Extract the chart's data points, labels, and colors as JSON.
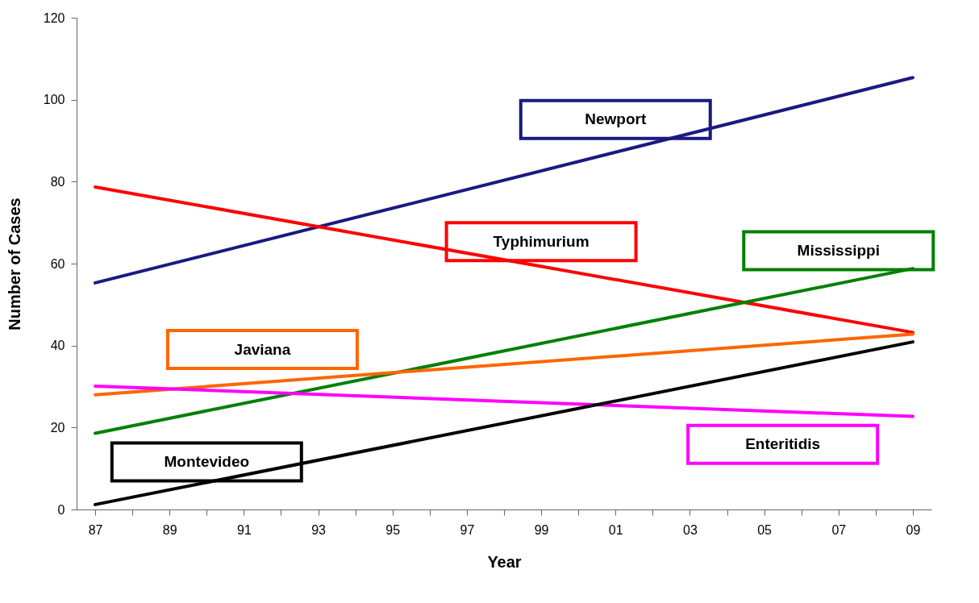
{
  "chart_data": {
    "type": "line",
    "xlabel": "Year",
    "ylabel": "Number of Cases",
    "categories": [
      "87",
      null,
      "89",
      null,
      "91",
      null,
      "93",
      null,
      "95",
      null,
      "97",
      null,
      "99",
      null,
      "01",
      null,
      "03",
      null,
      "05",
      null,
      "07",
      null,
      "09"
    ],
    "series": [
      {
        "name": "Newport",
        "color": "#1a1a80",
        "x": [
          "87",
          "09"
        ],
        "values": [
          55.3,
          105.4
        ]
      },
      {
        "name": "Typhimurium",
        "color": "#ff0000",
        "x": [
          "87",
          "09"
        ],
        "values": [
          78.7,
          43.2
        ]
      },
      {
        "name": "Mississippi",
        "color": "#008000",
        "x": [
          "87",
          "09"
        ],
        "values": [
          18.6,
          58.8
        ]
      },
      {
        "name": "Javiana",
        "color": "#ff6600",
        "x": [
          "87",
          "09"
        ],
        "values": [
          28,
          42.8
        ]
      },
      {
        "name": "Enteritidis",
        "color": "#ff00ff",
        "x": [
          "87",
          "09"
        ],
        "values": [
          30.1,
          22.7
        ]
      },
      {
        "name": "Montevideo",
        "color": "#000000",
        "x": [
          "87",
          "09"
        ],
        "values": [
          1.2,
          40.9
        ]
      }
    ],
    "ylim": [
      0,
      120
    ],
    "yticks": [
      0,
      20,
      40,
      60,
      80,
      100,
      120
    ],
    "grid": false,
    "legend": false
  }
}
